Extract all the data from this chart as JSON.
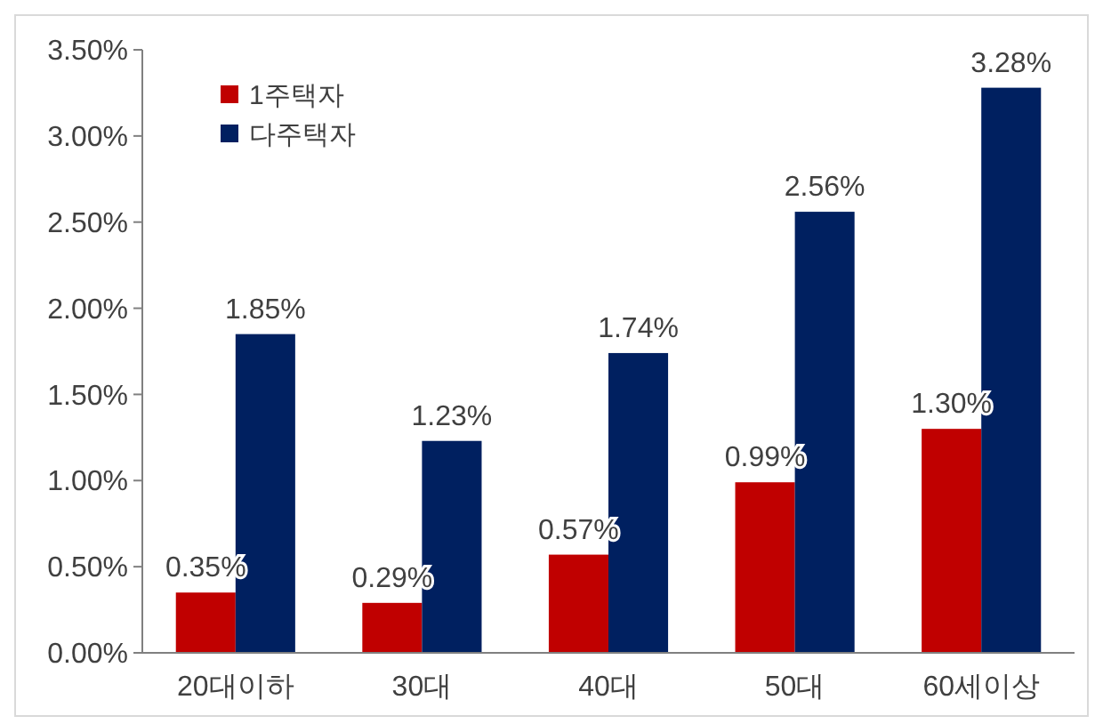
{
  "chart_data": {
    "type": "bar",
    "categories": [
      "20대이하",
      "30대",
      "40대",
      "50대",
      "60세이상"
    ],
    "series": [
      {
        "name": "1주택자",
        "color": "#c00000",
        "values": [
          0.35,
          0.29,
          0.57,
          0.99,
          1.3
        ],
        "value_labels": [
          "0.35%",
          "0.29%",
          "0.57%",
          "0.99%",
          "1.30%"
        ]
      },
      {
        "name": "다주택자",
        "color": "#002060",
        "values": [
          1.85,
          1.23,
          1.74,
          2.56,
          3.28
        ],
        "value_labels": [
          "1.85%",
          "1.23%",
          "1.74%",
          "2.56%",
          "3.28%"
        ]
      }
    ],
    "ylim": [
      0,
      3.5
    ],
    "yticks": [
      {
        "value": 0,
        "label": "0.00%"
      },
      {
        "value": 0.5,
        "label": "0.50%"
      },
      {
        "value": 1,
        "label": "1.00%"
      },
      {
        "value": 1.5,
        "label": "1.50%"
      },
      {
        "value": 2,
        "label": "2.00%"
      },
      {
        "value": 2.5,
        "label": "2.50%"
      },
      {
        "value": 3,
        "label": "3.00%"
      },
      {
        "value": 3.5,
        "label": "3.50%"
      }
    ],
    "grid": false,
    "legend": "top left"
  }
}
